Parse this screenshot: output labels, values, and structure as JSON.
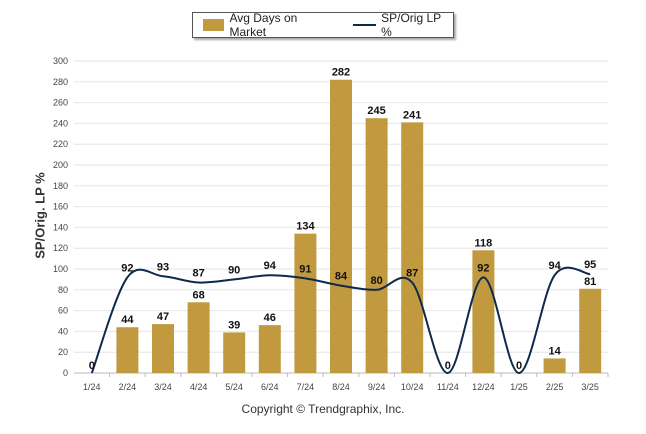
{
  "legend": {
    "bar_label": "Avg Days on Market",
    "line_label": "SP/Orig LP %"
  },
  "copyright": "Copyright © Trendgraphix, Inc.",
  "chart_data": {
    "type": "bar",
    "categories": [
      "1/24",
      "2/24",
      "3/24",
      "4/24",
      "5/24",
      "6/24",
      "7/24",
      "8/24",
      "9/24",
      "10/24",
      "11/24",
      "12/24",
      "1/25",
      "2/25",
      "3/25"
    ],
    "series": [
      {
        "name": "Avg Days on Market",
        "type": "bar",
        "values": [
          0,
          44,
          47,
          68,
          39,
          46,
          134,
          282,
          245,
          241,
          0,
          118,
          0,
          14,
          81
        ]
      },
      {
        "name": "SP/Orig LP %",
        "type": "line",
        "values": [
          null,
          92,
          93,
          87,
          90,
          94,
          91,
          84,
          80,
          87,
          null,
          92,
          null,
          94,
          95
        ]
      }
    ],
    "ylabel": "SP/Orig. LP %",
    "ylim": [
      0,
      300
    ],
    "yticks": [
      0,
      20,
      40,
      60,
      80,
      100,
      120,
      140,
      160,
      180,
      200,
      220,
      240,
      260,
      280,
      300
    ],
    "grid": true,
    "legend_position": "top-center",
    "colors": {
      "bar": "#C19A40",
      "line": "#0E2A4A"
    }
  }
}
